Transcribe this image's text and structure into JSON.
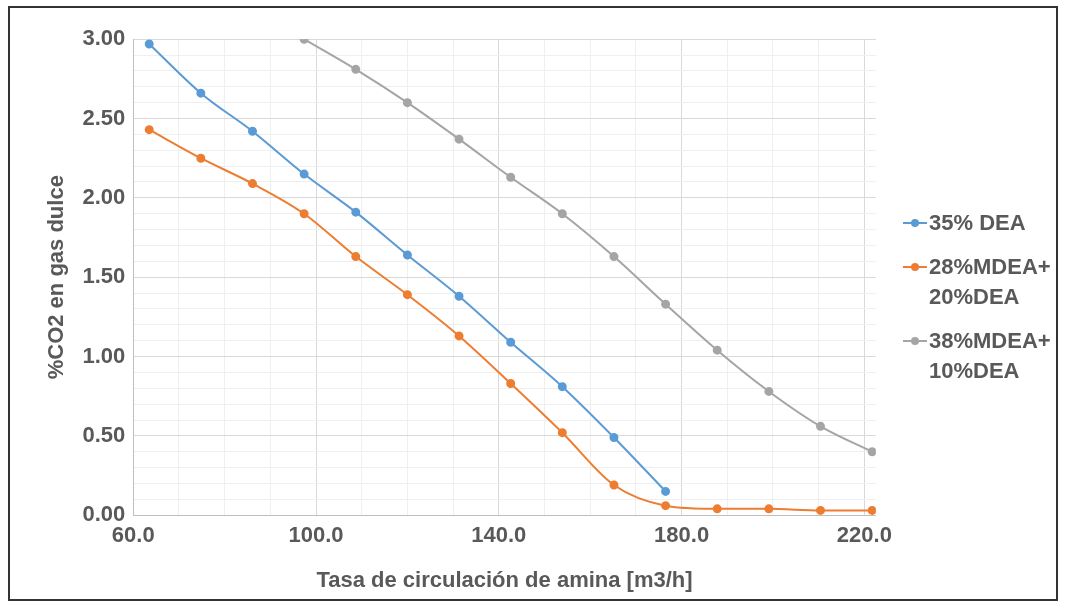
{
  "chart_data": {
    "type": "line",
    "xlabel": "Tasa de circulación de amina [m3/h]",
    "ylabel": "%CO2 en gas dulce",
    "x": [
      63.5,
      74.8,
      86.1,
      97.4,
      108.7,
      120,
      131.3,
      142.6,
      153.9,
      165.2,
      176.5,
      187.8,
      199.1,
      210.4,
      221.7
    ],
    "series": [
      {
        "name": "35% DEA",
        "color": "#5b9bd5",
        "values": [
          2.97,
          2.66,
          2.42,
          2.15,
          1.91,
          1.64,
          1.38,
          1.09,
          0.81,
          0.49,
          0.15,
          null,
          null,
          null,
          null
        ]
      },
      {
        "name": "28%MDEA+ 20%DEA",
        "color": "#ed7d31",
        "values": [
          2.43,
          2.25,
          2.09,
          1.9,
          1.63,
          1.39,
          1.13,
          0.83,
          0.52,
          0.19,
          0.06,
          0.04,
          0.04,
          0.03,
          0.03
        ]
      },
      {
        "name": "38%MDEA+ 10%DEA",
        "color": "#a5a5a5",
        "values": [
          null,
          null,
          null,
          3.0,
          2.81,
          2.6,
          2.37,
          2.13,
          1.9,
          1.63,
          1.33,
          1.04,
          0.78,
          0.56,
          0.4
        ]
      }
    ],
    "xlim": [
      60,
      222.5
    ],
    "xticks": [
      {
        "value": 60,
        "label": "60.0"
      },
      {
        "value": 70,
        "label": null
      },
      {
        "value": 80,
        "label": null
      },
      {
        "value": 90,
        "label": null
      },
      {
        "value": 100,
        "label": "100.0"
      },
      {
        "value": 110,
        "label": null
      },
      {
        "value": 120,
        "label": null
      },
      {
        "value": 130,
        "label": null
      },
      {
        "value": 140,
        "label": "140.0"
      },
      {
        "value": 150,
        "label": null
      },
      {
        "value": 160,
        "label": null
      },
      {
        "value": 170,
        "label": null
      },
      {
        "value": 180,
        "label": "180.0"
      },
      {
        "value": 190,
        "label": null
      },
      {
        "value": 200,
        "label": null
      },
      {
        "value": 210,
        "label": null
      },
      {
        "value": 220,
        "label": "220.0"
      }
    ],
    "ylim": [
      0,
      3
    ],
    "yticks": [
      {
        "value": 0,
        "label": "0.00"
      },
      {
        "value": 0.1,
        "label": null
      },
      {
        "value": 0.2,
        "label": null
      },
      {
        "value": 0.3,
        "label": null
      },
      {
        "value": 0.4,
        "label": null
      },
      {
        "value": 0.5,
        "label": "0.50"
      },
      {
        "value": 0.6,
        "label": null
      },
      {
        "value": 0.7,
        "label": null
      },
      {
        "value": 0.8,
        "label": null
      },
      {
        "value": 0.9,
        "label": null
      },
      {
        "value": 1,
        "label": "1.00"
      },
      {
        "value": 1.1,
        "label": null
      },
      {
        "value": 1.2,
        "label": null
      },
      {
        "value": 1.3,
        "label": null
      },
      {
        "value": 1.4,
        "label": null
      },
      {
        "value": 1.5,
        "label": "1.50"
      },
      {
        "value": 1.6,
        "label": null
      },
      {
        "value": 1.7,
        "label": null
      },
      {
        "value": 1.8,
        "label": null
      },
      {
        "value": 1.9,
        "label": null
      },
      {
        "value": 2,
        "label": "2.00"
      },
      {
        "value": 2.1,
        "label": null
      },
      {
        "value": 2.2,
        "label": null
      },
      {
        "value": 2.3,
        "label": null
      },
      {
        "value": 2.4,
        "label": null
      },
      {
        "value": 2.5,
        "label": "2.50"
      },
      {
        "value": 2.6,
        "label": null
      },
      {
        "value": 2.7,
        "label": null
      },
      {
        "value": 2.8,
        "label": null
      },
      {
        "value": 2.9,
        "label": null
      },
      {
        "value": 3,
        "label": "3.00"
      }
    ],
    "grid": true,
    "legend": "right",
    "marker": "circle",
    "line_style": "solid"
  }
}
